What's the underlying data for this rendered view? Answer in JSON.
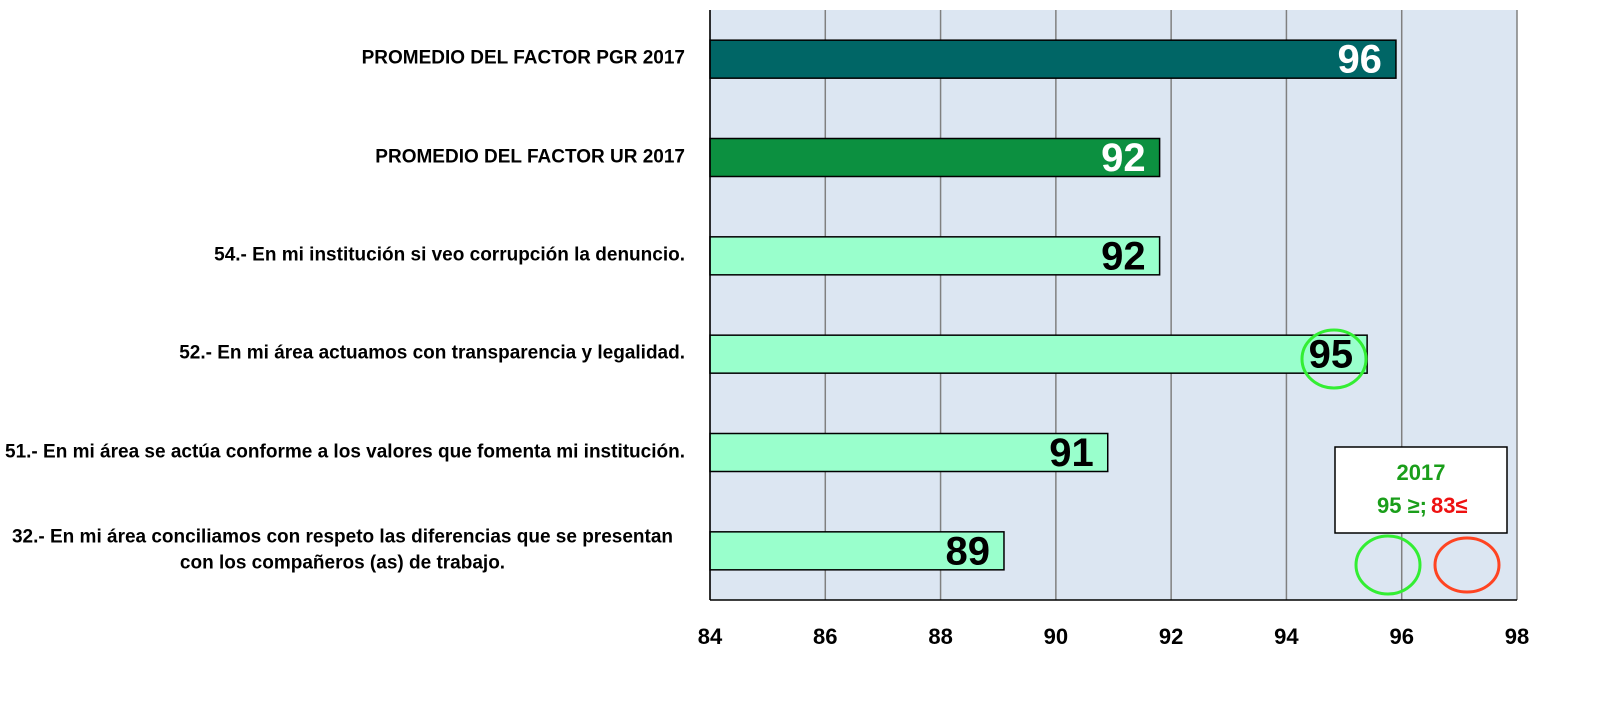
{
  "chart_data": {
    "type": "barh",
    "categories": [
      "PROMEDIO DEL FACTOR PGR 2017",
      "PROMEDIO DEL FACTOR UR 2017",
      "54.- En mi institución si veo corrupción la denuncio.",
      "52.- En mi área actuamos con transparencia y legalidad.",
      "51.- En mi área se actúa conforme a los valores que fomenta mi institución.",
      "32.- En mi área conciliamos con respeto las diferencias que se presentan con los compañeros (as) de trabajo."
    ],
    "values": [
      95.9,
      91.8,
      91.8,
      95.4,
      90.9,
      89.1
    ],
    "value_labels": [
      "96",
      "92",
      "92",
      "95",
      "91",
      "89"
    ],
    "colors": [
      "#006666",
      "#0c9040",
      "#99ffcc",
      "#99ffcc",
      "#99ffcc",
      "#99ffcc"
    ],
    "xlim": [
      84,
      98
    ],
    "xticks": [
      84,
      86,
      88,
      90,
      92,
      94,
      96,
      98
    ],
    "grid": true,
    "legend_box": {
      "title": "2017",
      "good": "95 ≥;",
      "bad": "83≤"
    }
  }
}
